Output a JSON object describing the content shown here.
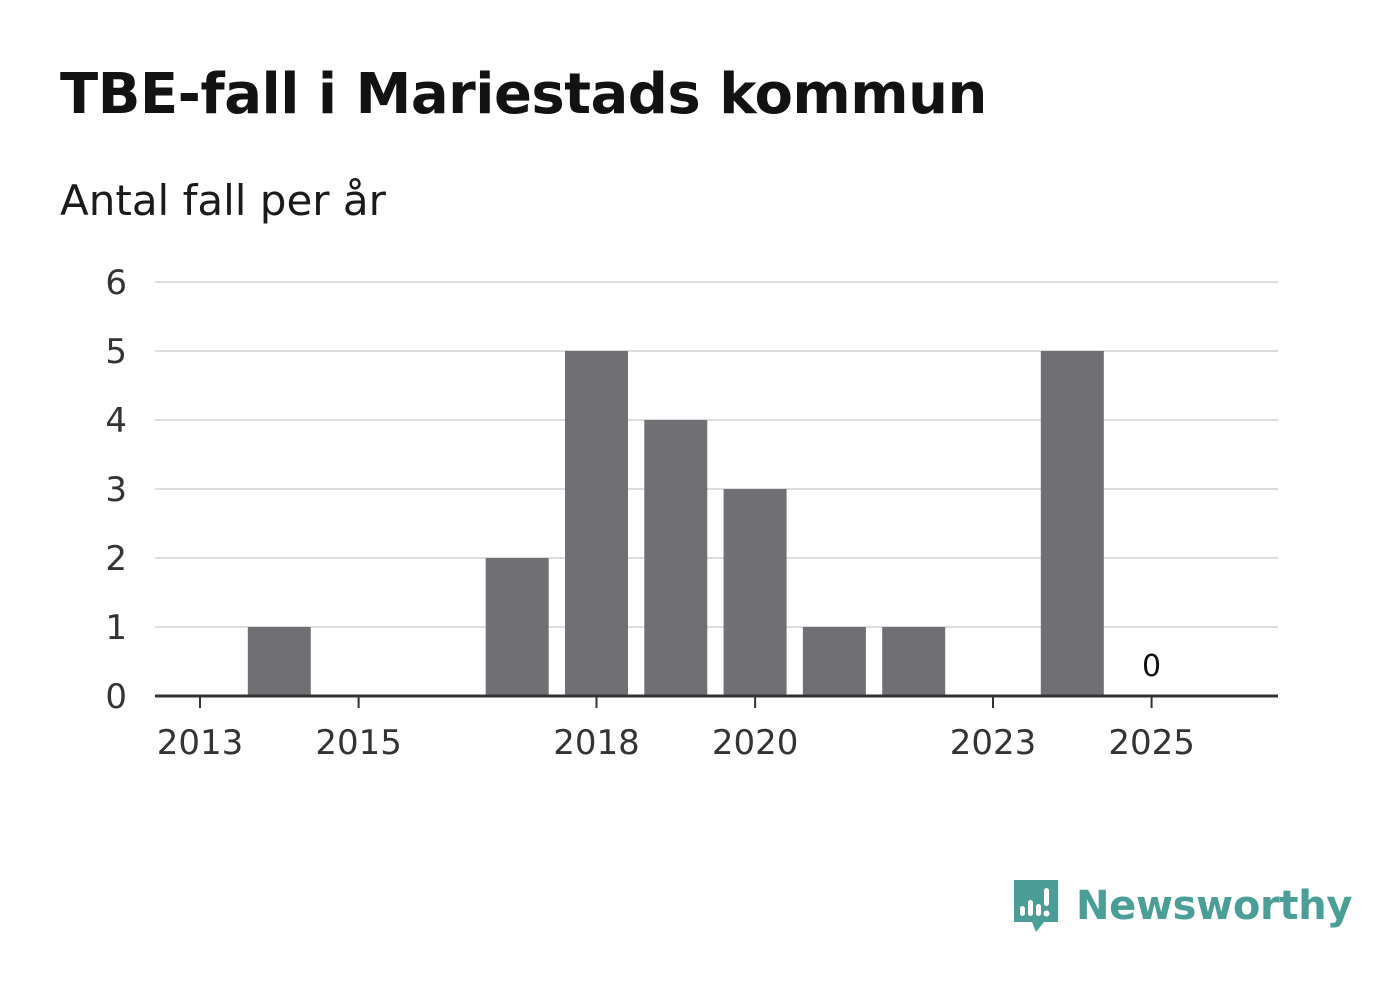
{
  "chart_data": {
    "type": "bar",
    "title": "TBE-fall i Mariestads kommun",
    "subtitle": "Antal fall per år",
    "categories": [
      2013,
      2014,
      2015,
      2016,
      2017,
      2018,
      2019,
      2020,
      2021,
      2022,
      2023,
      2024,
      2025
    ],
    "values": [
      0,
      1,
      0,
      0,
      2,
      5,
      4,
      3,
      1,
      1,
      0,
      5,
      0
    ],
    "x_tick_labels": [
      "2013",
      "2015",
      "2018",
      "2020",
      "2023",
      "2025"
    ],
    "y_tick_labels": [
      "0",
      "1",
      "2",
      "3",
      "4",
      "5",
      "6"
    ],
    "ylim": [
      0,
      6
    ],
    "xlabel": "",
    "ylabel": "",
    "grid": true,
    "data_labels": [
      {
        "category": 2025,
        "text": "0"
      }
    ],
    "bar_color": "#707074",
    "grid_color": "#dddddd",
    "axis_color": "#333333"
  },
  "brand": {
    "name": "Newsworthy",
    "color": "#4a9e97",
    "icon": "newsworthy-logo-icon"
  }
}
